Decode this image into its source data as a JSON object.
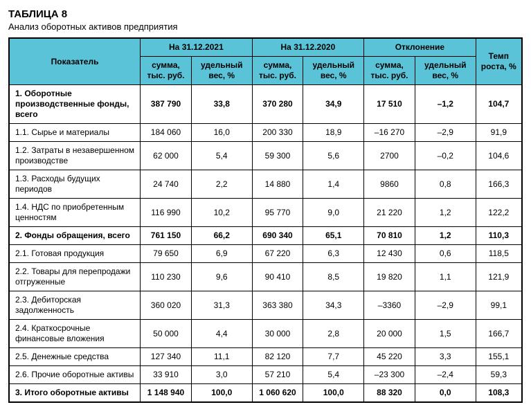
{
  "title": "ТАБЛИЦА 8",
  "subtitle": "Анализ оборотных активов предприятия",
  "header": {
    "indicator": "Показатель",
    "period1": "На 31.12.2021",
    "period2": "На 31.12.2020",
    "deviation": "Отклонение",
    "growth": "Темп роста, %",
    "sum": "сумма, тыс. руб.",
    "weight": "удельный вес, %"
  },
  "colors": {
    "header_bg": "#5bc3d8",
    "border": "#000000",
    "text": "#000000",
    "bg": "#ffffff"
  },
  "rows": [
    {
      "bold": true,
      "label": "1. Оборотные производственные фонды, всего",
      "s1": "387 790",
      "w1": "33,8",
      "s2": "370 280",
      "w2": "34,9",
      "ds": "17 510",
      "dw": "–1,2",
      "g": "104,7"
    },
    {
      "bold": false,
      "label": "1.1. Сырье и материалы",
      "s1": "184 060",
      "w1": "16,0",
      "s2": "200 330",
      "w2": "18,9",
      "ds": "–16 270",
      "dw": "–2,9",
      "g": "91,9"
    },
    {
      "bold": false,
      "label": "1.2. Затраты в незавершенном производстве",
      "s1": "62 000",
      "w1": "5,4",
      "s2": "59 300",
      "w2": "5,6",
      "ds": "2700",
      "dw": "–0,2",
      "g": "104,6"
    },
    {
      "bold": false,
      "label": "1.3. Расходы будущих периодов",
      "s1": "24 740",
      "w1": "2,2",
      "s2": "14 880",
      "w2": "1,4",
      "ds": "9860",
      "dw": "0,8",
      "g": "166,3"
    },
    {
      "bold": false,
      "label": "1.4. НДС по приобретенным ценностям",
      "s1": "116 990",
      "w1": "10,2",
      "s2": "95 770",
      "w2": "9,0",
      "ds": "21 220",
      "dw": "1,2",
      "g": "122,2"
    },
    {
      "bold": true,
      "label": "2. Фонды обращения, всего",
      "s1": "761 150",
      "w1": "66,2",
      "s2": "690 340",
      "w2": "65,1",
      "ds": "70 810",
      "dw": "1,2",
      "g": "110,3"
    },
    {
      "bold": false,
      "label": "2.1. Готовая продукция",
      "s1": "79 650",
      "w1": "6,9",
      "s2": "67 220",
      "w2": "6,3",
      "ds": "12 430",
      "dw": "0,6",
      "g": "118,5"
    },
    {
      "bold": false,
      "label": "2.2. Товары для перепродажи отгруженные",
      "s1": "110 230",
      "w1": "9,6",
      "s2": "90 410",
      "w2": "8,5",
      "ds": "19 820",
      "dw": "1,1",
      "g": "121,9"
    },
    {
      "bold": false,
      "label": "2.3. Дебиторская задолженность",
      "s1": "360 020",
      "w1": "31,3",
      "s2": "363 380",
      "w2": "34,3",
      "ds": "–3360",
      "dw": "–2,9",
      "g": "99,1"
    },
    {
      "bold": false,
      "label": "2.4. Краткосрочные финансовые вложения",
      "s1": "50 000",
      "w1": "4,4",
      "s2": "30 000",
      "w2": "2,8",
      "ds": "20 000",
      "dw": "1,5",
      "g": "166,7"
    },
    {
      "bold": false,
      "label": "2.5. Денежные средства",
      "s1": "127 340",
      "w1": "11,1",
      "s2": "82 120",
      "w2": "7,7",
      "ds": "45 220",
      "dw": "3,3",
      "g": "155,1"
    },
    {
      "bold": false,
      "label": "2.6. Прочие оборотные активы",
      "s1": "33 910",
      "w1": "3,0",
      "s2": "57 210",
      "w2": "5,4",
      "ds": "–23 300",
      "dw": "–2,4",
      "g": "59,3"
    },
    {
      "bold": true,
      "label": "3. Итого оборотные активы",
      "s1": "1 148 940",
      "w1": "100,0",
      "s2": "1 060 620",
      "w2": "100,0",
      "ds": "88 320",
      "dw": "0,0",
      "g": "108,3"
    }
  ]
}
